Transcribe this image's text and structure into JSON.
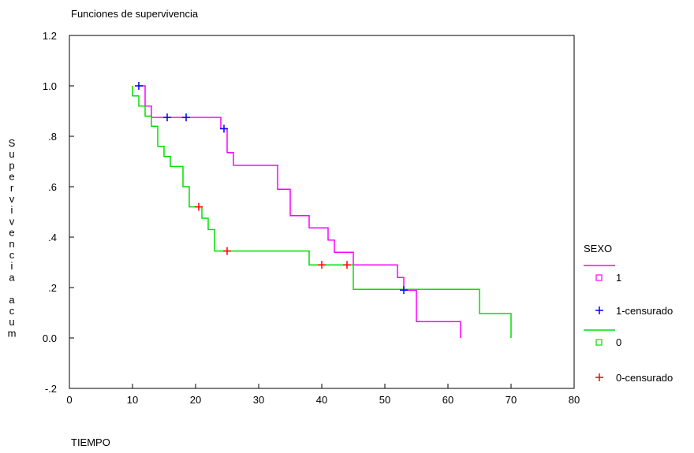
{
  "chart_data": {
    "type": "line",
    "title": "Funciones de supervivencia",
    "xlabel": "TIEMPO",
    "ylabel": "Supervivencia acum",
    "xlim": [
      0,
      80
    ],
    "ylim": [
      -0.2,
      1.2
    ],
    "xticks": [
      0,
      10,
      20,
      30,
      40,
      50,
      60,
      70,
      80
    ],
    "xtick_labels": [
      "0",
      "10",
      "20",
      "30",
      "40",
      "50",
      "60",
      "70",
      "80"
    ],
    "yticks": [
      -0.2,
      0.0,
      0.2,
      0.4,
      0.6,
      0.8,
      1.0,
      1.2
    ],
    "ytick_labels": [
      "-.2",
      "0.0",
      ".2",
      ".4",
      ".6",
      ".8",
      "1.0",
      "1.2"
    ],
    "grid": false,
    "legend": {
      "title": "SEXO",
      "position": "right",
      "entries": [
        "1",
        "1-censurado",
        "0",
        "0-censurado"
      ]
    },
    "series": [
      {
        "name": "1",
        "kind": "step",
        "color": "#ff00ff",
        "points": [
          [
            11,
            1.0
          ],
          [
            12,
            1.0
          ],
          [
            12,
            0.92
          ],
          [
            13,
            0.92
          ],
          [
            13,
            0.875
          ],
          [
            24,
            0.875
          ],
          [
            24,
            0.83
          ],
          [
            25,
            0.83
          ],
          [
            25,
            0.735
          ],
          [
            26,
            0.735
          ],
          [
            26,
            0.685
          ],
          [
            33,
            0.685
          ],
          [
            33,
            0.59
          ],
          [
            35,
            0.59
          ],
          [
            35,
            0.485
          ],
          [
            38,
            0.485
          ],
          [
            38,
            0.437
          ],
          [
            41,
            0.437
          ],
          [
            41,
            0.388
          ],
          [
            42,
            0.388
          ],
          [
            42,
            0.34
          ],
          [
            45,
            0.34
          ],
          [
            45,
            0.29
          ],
          [
            52,
            0.29
          ],
          [
            52,
            0.24
          ],
          [
            53,
            0.24
          ],
          [
            53,
            0.19
          ],
          [
            55,
            0.19
          ],
          [
            55,
            0.065
          ],
          [
            62,
            0.065
          ],
          [
            62,
            0.0
          ]
        ]
      },
      {
        "name": "1-censurado",
        "kind": "censor",
        "color": "#0000ff",
        "points": [
          [
            11,
            1.0
          ],
          [
            15.5,
            0.875
          ],
          [
            18.5,
            0.875
          ],
          [
            24.5,
            0.83
          ],
          [
            53,
            0.19
          ]
        ]
      },
      {
        "name": "0",
        "kind": "step",
        "color": "#00e000",
        "points": [
          [
            10,
            1.0
          ],
          [
            10,
            0.96
          ],
          [
            11,
            0.96
          ],
          [
            11,
            0.92
          ],
          [
            12,
            0.92
          ],
          [
            12,
            0.88
          ],
          [
            13,
            0.88
          ],
          [
            13,
            0.84
          ],
          [
            14,
            0.84
          ],
          [
            14,
            0.76
          ],
          [
            15,
            0.76
          ],
          [
            15,
            0.72
          ],
          [
            16,
            0.72
          ],
          [
            16,
            0.68
          ],
          [
            18,
            0.68
          ],
          [
            18,
            0.6
          ],
          [
            19,
            0.6
          ],
          [
            19,
            0.52
          ],
          [
            21,
            0.52
          ],
          [
            21,
            0.475
          ],
          [
            22,
            0.475
          ],
          [
            22,
            0.43
          ],
          [
            23,
            0.43
          ],
          [
            23,
            0.345
          ],
          [
            38,
            0.345
          ],
          [
            38,
            0.29
          ],
          [
            45,
            0.29
          ],
          [
            45,
            0.193
          ],
          [
            65,
            0.193
          ],
          [
            65,
            0.097
          ],
          [
            70,
            0.097
          ],
          [
            70,
            0.0
          ]
        ]
      },
      {
        "name": "0-censurado",
        "kind": "censor",
        "color": "#ff0000",
        "points": [
          [
            20.5,
            0.52
          ],
          [
            25,
            0.345
          ],
          [
            40,
            0.29
          ],
          [
            44,
            0.29
          ]
        ]
      }
    ]
  }
}
